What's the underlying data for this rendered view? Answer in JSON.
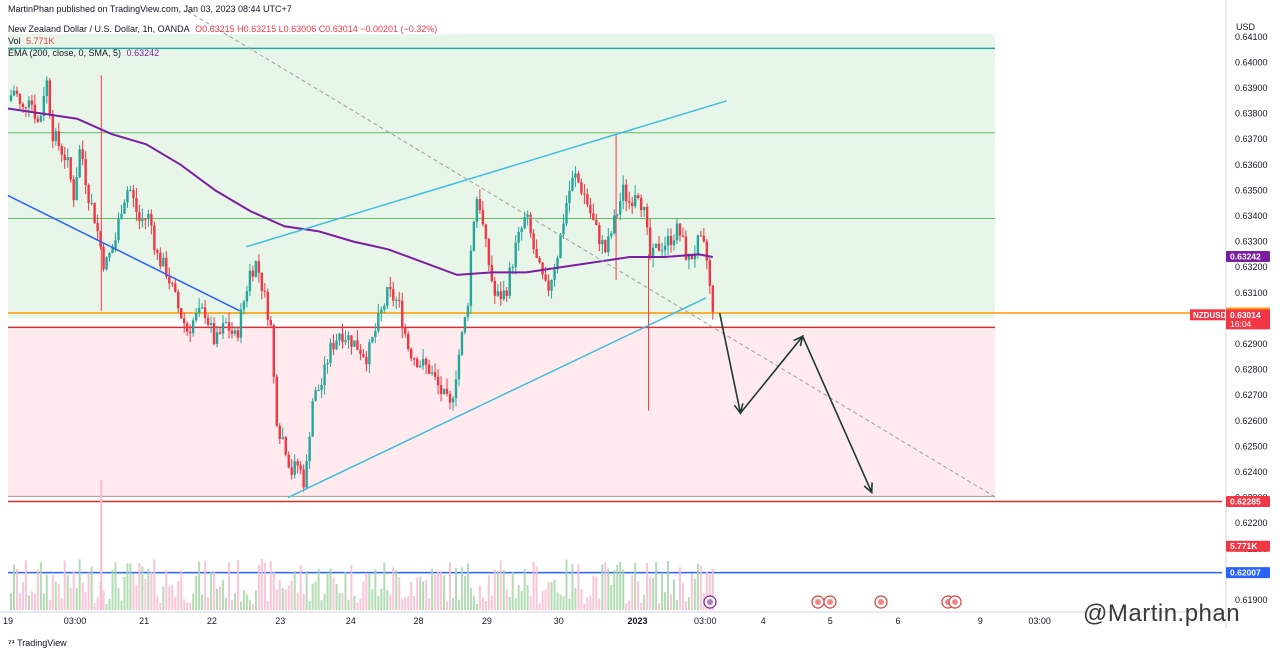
{
  "header": {
    "published": "MartinPhan published on TradingView.com, Jan 03, 2023 08:44 UTC+7",
    "symbol_title": "New Zealand Dollar / U.S. Dollar, 1h, OANDA",
    "ohlc": "O0.63215 H0.63215 L0.63006 C0.63014 −0.00201 (−0.32%)",
    "vol_label": "Vol",
    "vol_value": "5.771K",
    "ema_label": "EMA (200, close, 0, SMA, 5)",
    "ema_value": "0.63242"
  },
  "currency": "USD",
  "footer": {
    "logo_text": "TradingView"
  },
  "watermark": "@Martin.phan",
  "colors": {
    "up": "#26a69a",
    "down": "#f23645",
    "ema": "#7b1fa2",
    "channel": "#40bde0",
    "orange": "#ff9800",
    "red_line": "#d32f2f",
    "blue_line": "#2962ff"
  },
  "chart_data": {
    "type": "candlestick",
    "symbol": "NZDUSD",
    "timeframe": "1h",
    "y_range": [
      0.6185,
      0.6421
    ],
    "y_ticks": [
      "0.64100",
      "0.64000",
      "0.63900",
      "0.63800",
      "0.63700",
      "0.63600",
      "0.63500",
      "0.63400",
      "0.63300",
      "0.63200",
      "0.63100",
      "0.63000",
      "0.62900",
      "0.62800",
      "0.62700",
      "0.62600",
      "0.62500",
      "0.62400",
      "0.62300",
      "0.62200",
      "0.62100",
      "0.62000",
      "0.61900"
    ],
    "x_ticks": [
      {
        "label": "19",
        "t": 0
      },
      {
        "label": "03:00",
        "t": 0.097
      },
      {
        "label": "21",
        "t": 0.197
      },
      {
        "label": "22",
        "t": 0.295
      },
      {
        "label": "23",
        "t": 0.394
      },
      {
        "label": "24",
        "t": 0.496
      },
      {
        "label": "28",
        "t": 0.594
      },
      {
        "label": "29",
        "t": 0.693
      },
      {
        "label": "30",
        "t": 0.797
      },
      {
        "label": "2023",
        "t": 0.911
      },
      {
        "label": "03:00",
        "t": 1.009
      },
      {
        "label": "4",
        "t": 1.093
      },
      {
        "label": "5",
        "t": 1.19
      },
      {
        "label": "6",
        "t": 1.288
      },
      {
        "label": "9",
        "t": 1.407
      },
      {
        "label": "03:00",
        "t": 1.493
      }
    ],
    "price_path": [
      [
        0,
        0.6385
      ],
      [
        0.01,
        0.639
      ],
      [
        0.02,
        0.638
      ],
      [
        0.03,
        0.6388
      ],
      [
        0.045,
        0.6375
      ],
      [
        0.055,
        0.6395
      ],
      [
        0.065,
        0.6372
      ],
      [
        0.075,
        0.6367
      ],
      [
        0.085,
        0.6362
      ],
      [
        0.095,
        0.6348
      ],
      [
        0.105,
        0.6368
      ],
      [
        0.115,
        0.635
      ],
      [
        0.125,
        0.634
      ],
      [
        0.14,
        0.632
      ],
      [
        0.155,
        0.633
      ],
      [
        0.165,
        0.6345
      ],
      [
        0.175,
        0.6352
      ],
      [
        0.19,
        0.6338
      ],
      [
        0.205,
        0.634
      ],
      [
        0.215,
        0.6325
      ],
      [
        0.23,
        0.6318
      ],
      [
        0.245,
        0.6305
      ],
      [
        0.26,
        0.6295
      ],
      [
        0.27,
        0.63
      ],
      [
        0.285,
        0.6303
      ],
      [
        0.3,
        0.629
      ],
      [
        0.315,
        0.6298
      ],
      [
        0.33,
        0.6292
      ],
      [
        0.34,
        0.6305
      ],
      [
        0.35,
        0.6318
      ],
      [
        0.36,
        0.6322
      ],
      [
        0.37,
        0.631
      ],
      [
        0.38,
        0.6298
      ],
      [
        0.385,
        0.6275
      ],
      [
        0.39,
        0.6258
      ],
      [
        0.4,
        0.6252
      ],
      [
        0.41,
        0.624
      ],
      [
        0.42,
        0.6243
      ],
      [
        0.43,
        0.6235
      ],
      [
        0.44,
        0.6268
      ],
      [
        0.455,
        0.6275
      ],
      [
        0.465,
        0.6287
      ],
      [
        0.48,
        0.6295
      ],
      [
        0.495,
        0.6292
      ],
      [
        0.51,
        0.6288
      ],
      [
        0.52,
        0.6285
      ],
      [
        0.535,
        0.6298
      ],
      [
        0.55,
        0.631
      ],
      [
        0.565,
        0.6306
      ],
      [
        0.58,
        0.6288
      ],
      [
        0.595,
        0.6283
      ],
      [
        0.61,
        0.628
      ],
      [
        0.625,
        0.6272
      ],
      [
        0.64,
        0.6265
      ],
      [
        0.655,
        0.629
      ],
      [
        0.665,
        0.6305
      ],
      [
        0.672,
        0.6335
      ],
      [
        0.68,
        0.635
      ],
      [
        0.69,
        0.633
      ],
      [
        0.705,
        0.6308
      ],
      [
        0.72,
        0.631
      ],
      [
        0.735,
        0.6328
      ],
      [
        0.75,
        0.634
      ],
      [
        0.765,
        0.6322
      ],
      [
        0.78,
        0.631
      ],
      [
        0.795,
        0.6325
      ],
      [
        0.81,
        0.6348
      ],
      [
        0.82,
        0.6356
      ],
      [
        0.835,
        0.6348
      ],
      [
        0.85,
        0.6335
      ],
      [
        0.865,
        0.6326
      ],
      [
        0.88,
        0.634
      ],
      [
        0.89,
        0.635
      ],
      [
        0.9,
        0.6345
      ],
      [
        0.91,
        0.6352
      ],
      [
        0.92,
        0.6342
      ],
      [
        0.93,
        0.6322
      ],
      [
        0.94,
        0.6328
      ],
      [
        0.955,
        0.633
      ],
      [
        0.97,
        0.6335
      ],
      [
        0.985,
        0.6322
      ],
      [
        1.0,
        0.633
      ],
      [
        1.01,
        0.6326
      ],
      [
        1.02,
        0.6301
      ]
    ],
    "ema_path": [
      [
        0,
        0.6382
      ],
      [
        0.05,
        0.638
      ],
      [
        0.1,
        0.6378
      ],
      [
        0.15,
        0.6372
      ],
      [
        0.2,
        0.6368
      ],
      [
        0.25,
        0.636
      ],
      [
        0.3,
        0.635
      ],
      [
        0.35,
        0.6342
      ],
      [
        0.4,
        0.6336
      ],
      [
        0.45,
        0.6334
      ],
      [
        0.5,
        0.633
      ],
      [
        0.55,
        0.6327
      ],
      [
        0.6,
        0.6322
      ],
      [
        0.65,
        0.6317
      ],
      [
        0.7,
        0.6318
      ],
      [
        0.75,
        0.6318
      ],
      [
        0.8,
        0.632
      ],
      [
        0.85,
        0.6322
      ],
      [
        0.9,
        0.6324
      ],
      [
        0.95,
        0.6324
      ],
      [
        1.0,
        0.6325
      ],
      [
        1.02,
        0.6324
      ]
    ],
    "zones": [
      {
        "from": 0.63,
        "to": 0.6411,
        "fill": "#e8f5e9"
      },
      {
        "from": 0.623,
        "to": 0.6296,
        "fill": "#ffebee"
      }
    ],
    "hlines": [
      {
        "price": 0.64055,
        "color": "#26a69a",
        "width": 1.5,
        "from": 0,
        "to": 1.43
      },
      {
        "price": 0.63725,
        "color": "#66bb6a",
        "width": 1,
        "from": 0,
        "to": 1.43
      },
      {
        "price": 0.6339,
        "color": "#66bb6a",
        "width": 1,
        "from": 0,
        "to": 1.43
      },
      {
        "price": 0.63021,
        "color": "#ff9800",
        "width": 1.5,
        "from": 0,
        "to": 1.75
      },
      {
        "price": 0.62965,
        "color": "#d32f2f",
        "width": 1.5,
        "from": 0,
        "to": 1.43
      },
      {
        "price": 0.62305,
        "color": "#9e9e9e",
        "width": 1,
        "from": 0,
        "to": 1.43
      },
      {
        "price": 0.62285,
        "color": "#d32f2f",
        "width": 1.5,
        "from": 0,
        "to": 1.75
      },
      {
        "price": 0.62007,
        "color": "#2962ff",
        "width": 1.5,
        "from": 0,
        "to": 1.75
      }
    ],
    "trendlines": [
      {
        "p1": [
          0,
          0.6348
        ],
        "p2": [
          0.335,
          0.6303
        ],
        "color": "#2962ff"
      },
      {
        "p1": [
          0.345,
          0.6328
        ],
        "p2": [
          1.04,
          0.6385
        ],
        "color": "#40bde0"
      },
      {
        "p1": [
          0.405,
          0.623
        ],
        "p2": [
          1.01,
          0.6308
        ],
        "color": "#40bde0"
      },
      {
        "p1": [
          0.26,
          0.642
        ],
        "p2": [
          1.43,
          0.623
        ],
        "color": "#9e9e9e",
        "dashed": true
      }
    ],
    "projection": [
      [
        1.03,
        0.6302
      ],
      [
        1.06,
        0.6263
      ],
      [
        1.15,
        0.6293
      ],
      [
        1.25,
        0.6232
      ]
    ],
    "price_labels": [
      {
        "text": "0.63242",
        "price": 0.63242,
        "bg": "#7b1fa2"
      },
      {
        "text": "0.63021",
        "price": 0.63021,
        "bg": "#ff9800"
      },
      {
        "text": "0.63014",
        "price": 0.63014,
        "bg": "#f23645",
        "tag": "NZDUSD",
        "sub": "16:04"
      },
      {
        "text": "0.62285",
        "price": 0.62285,
        "bg": "#f23645"
      },
      {
        "text": "5.771K",
        "price": 0.6211,
        "bg": "#f23645"
      },
      {
        "text": "0.62007",
        "price": 0.62007,
        "bg": "#2962ff"
      }
    ],
    "last_price": 0.63014,
    "ema_last": 0.63242,
    "volume_last": "5.771K"
  }
}
